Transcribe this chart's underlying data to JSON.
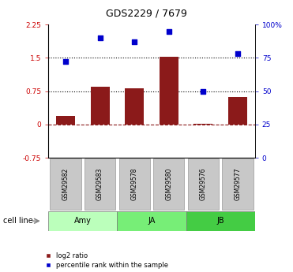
{
  "title": "GDS2229 / 7679",
  "samples": [
    "GSM29582",
    "GSM29583",
    "GSM29578",
    "GSM29580",
    "GSM29576",
    "GSM29577"
  ],
  "log2_ratio": [
    0.2,
    0.85,
    0.82,
    1.53,
    0.02,
    0.62
  ],
  "percentile_rank": [
    72,
    90,
    87,
    95,
    50,
    78
  ],
  "cell_line_groups": [
    {
      "label": "Amy",
      "indices": [
        0,
        1
      ],
      "color": "#bbffbb"
    },
    {
      "label": "JA",
      "indices": [
        2,
        3
      ],
      "color": "#77ee77"
    },
    {
      "label": "JB",
      "indices": [
        4,
        5
      ],
      "color": "#44cc44"
    }
  ],
  "bar_color": "#8b1a1a",
  "dot_color": "#0000cc",
  "ylim_left": [
    -0.75,
    2.25
  ],
  "ylim_right": [
    0,
    100
  ],
  "yticks_left": [
    -0.75,
    0,
    0.75,
    1.5,
    2.25
  ],
  "yticks_right": [
    0,
    25,
    50,
    75,
    100
  ],
  "hline_dotted": [
    0.75,
    1.5
  ],
  "hline_dash": 0.0,
  "left_tick_color": "#cc0000",
  "right_tick_color": "#0000cc",
  "bg_color": "#ffffff",
  "plot_bg": "#ffffff",
  "label_log2": "log2 ratio",
  "label_pct": "percentile rank within the sample",
  "cell_line_label": "cell line",
  "gsm_bg": "#c8c8c8",
  "gsm_border": "#999999"
}
